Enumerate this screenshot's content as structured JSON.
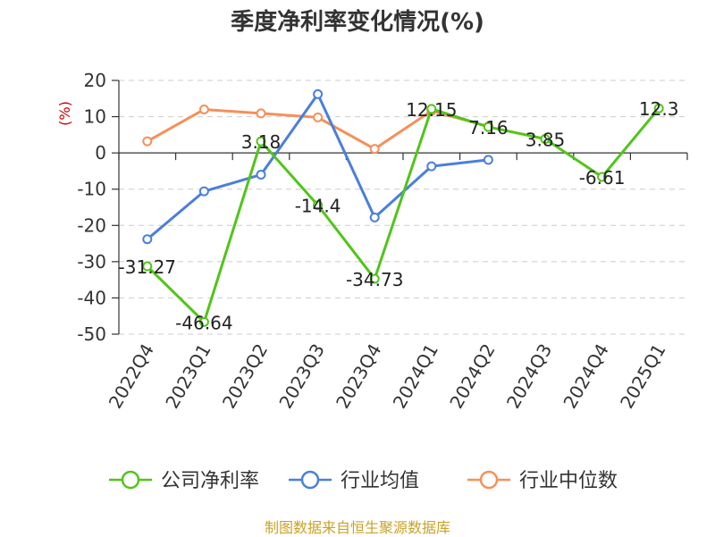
{
  "chart_data": {
    "type": "line",
    "title": "季度净利率变化情况(%)",
    "ylabel": "(%)",
    "xlabel": "",
    "categories": [
      "2022Q4",
      "2023Q1",
      "2023Q2",
      "2023Q3",
      "2023Q4",
      "2024Q1",
      "2024Q2",
      "2024Q3",
      "2024Q4",
      "2025Q1"
    ],
    "ylim": [
      -50,
      20
    ],
    "yticks": [
      20,
      10,
      0,
      -10,
      -20,
      -30,
      -40,
      -50
    ],
    "grid": true,
    "legend_position": "bottom",
    "series": [
      {
        "name": "公司净利率",
        "color": "#52c41a",
        "values": [
          -31.27,
          -46.64,
          3.18,
          -14.4,
          -34.73,
          12.15,
          7.16,
          3.85,
          -6.61,
          12.3
        ],
        "labels": [
          "-31.27",
          "-46.64",
          "3.18",
          "-14.4",
          "-34.73",
          "12.15",
          "7.16",
          "3.85",
          "-6.61",
          "12.3"
        ]
      },
      {
        "name": "行业均值",
        "color": "#4a7fdb",
        "values": [
          -23.8,
          -10.6,
          -6.0,
          16.2,
          -17.8,
          -3.7,
          -1.9,
          null,
          null,
          null
        ]
      },
      {
        "name": "行业中位数",
        "color": "#f5905a",
        "values": [
          3.2,
          12.0,
          10.9,
          9.8,
          1.1,
          11.6,
          7.3,
          null,
          null,
          null
        ]
      }
    ]
  },
  "source": "制图数据来自恒生聚源数据库"
}
